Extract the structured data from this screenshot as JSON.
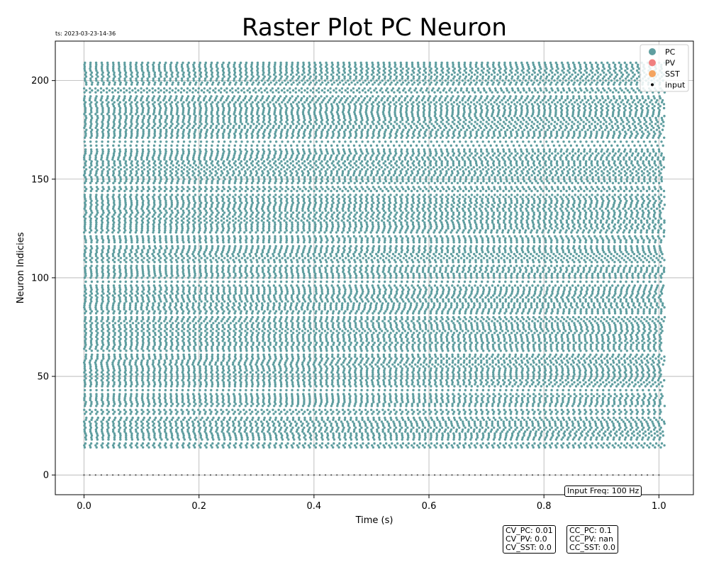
{
  "chart_data": {
    "type": "scatter",
    "title": "Raster Plot PC Neuron",
    "timestamp": "ts: 2023-03-23-14-36",
    "xlabel": "Time (s)",
    "ylabel": "Neuron Indicies",
    "xlim": [
      -0.05,
      1.06
    ],
    "ylim": [
      -10,
      220
    ],
    "xticks": [
      0.0,
      0.2,
      0.4,
      0.6,
      0.8,
      1.0
    ],
    "xtick_labels": [
      "0.0",
      "0.2",
      "0.4",
      "0.6",
      "0.8",
      "1.0"
    ],
    "yticks": [
      0,
      50,
      100,
      150,
      200
    ],
    "ytick_labels": [
      "0",
      "50",
      "100",
      "150",
      "200"
    ],
    "grid": true,
    "legend_position": "top-right",
    "legend": [
      {
        "label": "PC",
        "color": "#5f9ea0",
        "marker": "large-dot"
      },
      {
        "label": "PV",
        "color": "#f08080",
        "marker": "large-dot"
      },
      {
        "label": "SST",
        "color": "#f4a460",
        "marker": "large-dot"
      },
      {
        "label": "input",
        "color": "#000000",
        "marker": "small-dot"
      }
    ],
    "series": [
      {
        "name": "PC",
        "color": "#5f9ea0",
        "neuron_range": [
          14,
          209
        ],
        "time_range": [
          0.0,
          1.01
        ],
        "approx_rate_hz": 100
      },
      {
        "name": "input",
        "color": "#555555",
        "neuron_index": 0,
        "time_range": [
          0.0,
          1.0
        ],
        "approx_rate_hz": 100
      }
    ],
    "annotations": {
      "input_freq": "Input Freq: 100 Hz",
      "cv_box": [
        "CV_PC: 0.01",
        "CV_PV: 0.0",
        "CV_SST: 0.0"
      ],
      "cc_box": [
        "CC_PC: 0.1",
        "CC_PV: nan",
        "CC_SST: 0.0"
      ]
    }
  }
}
